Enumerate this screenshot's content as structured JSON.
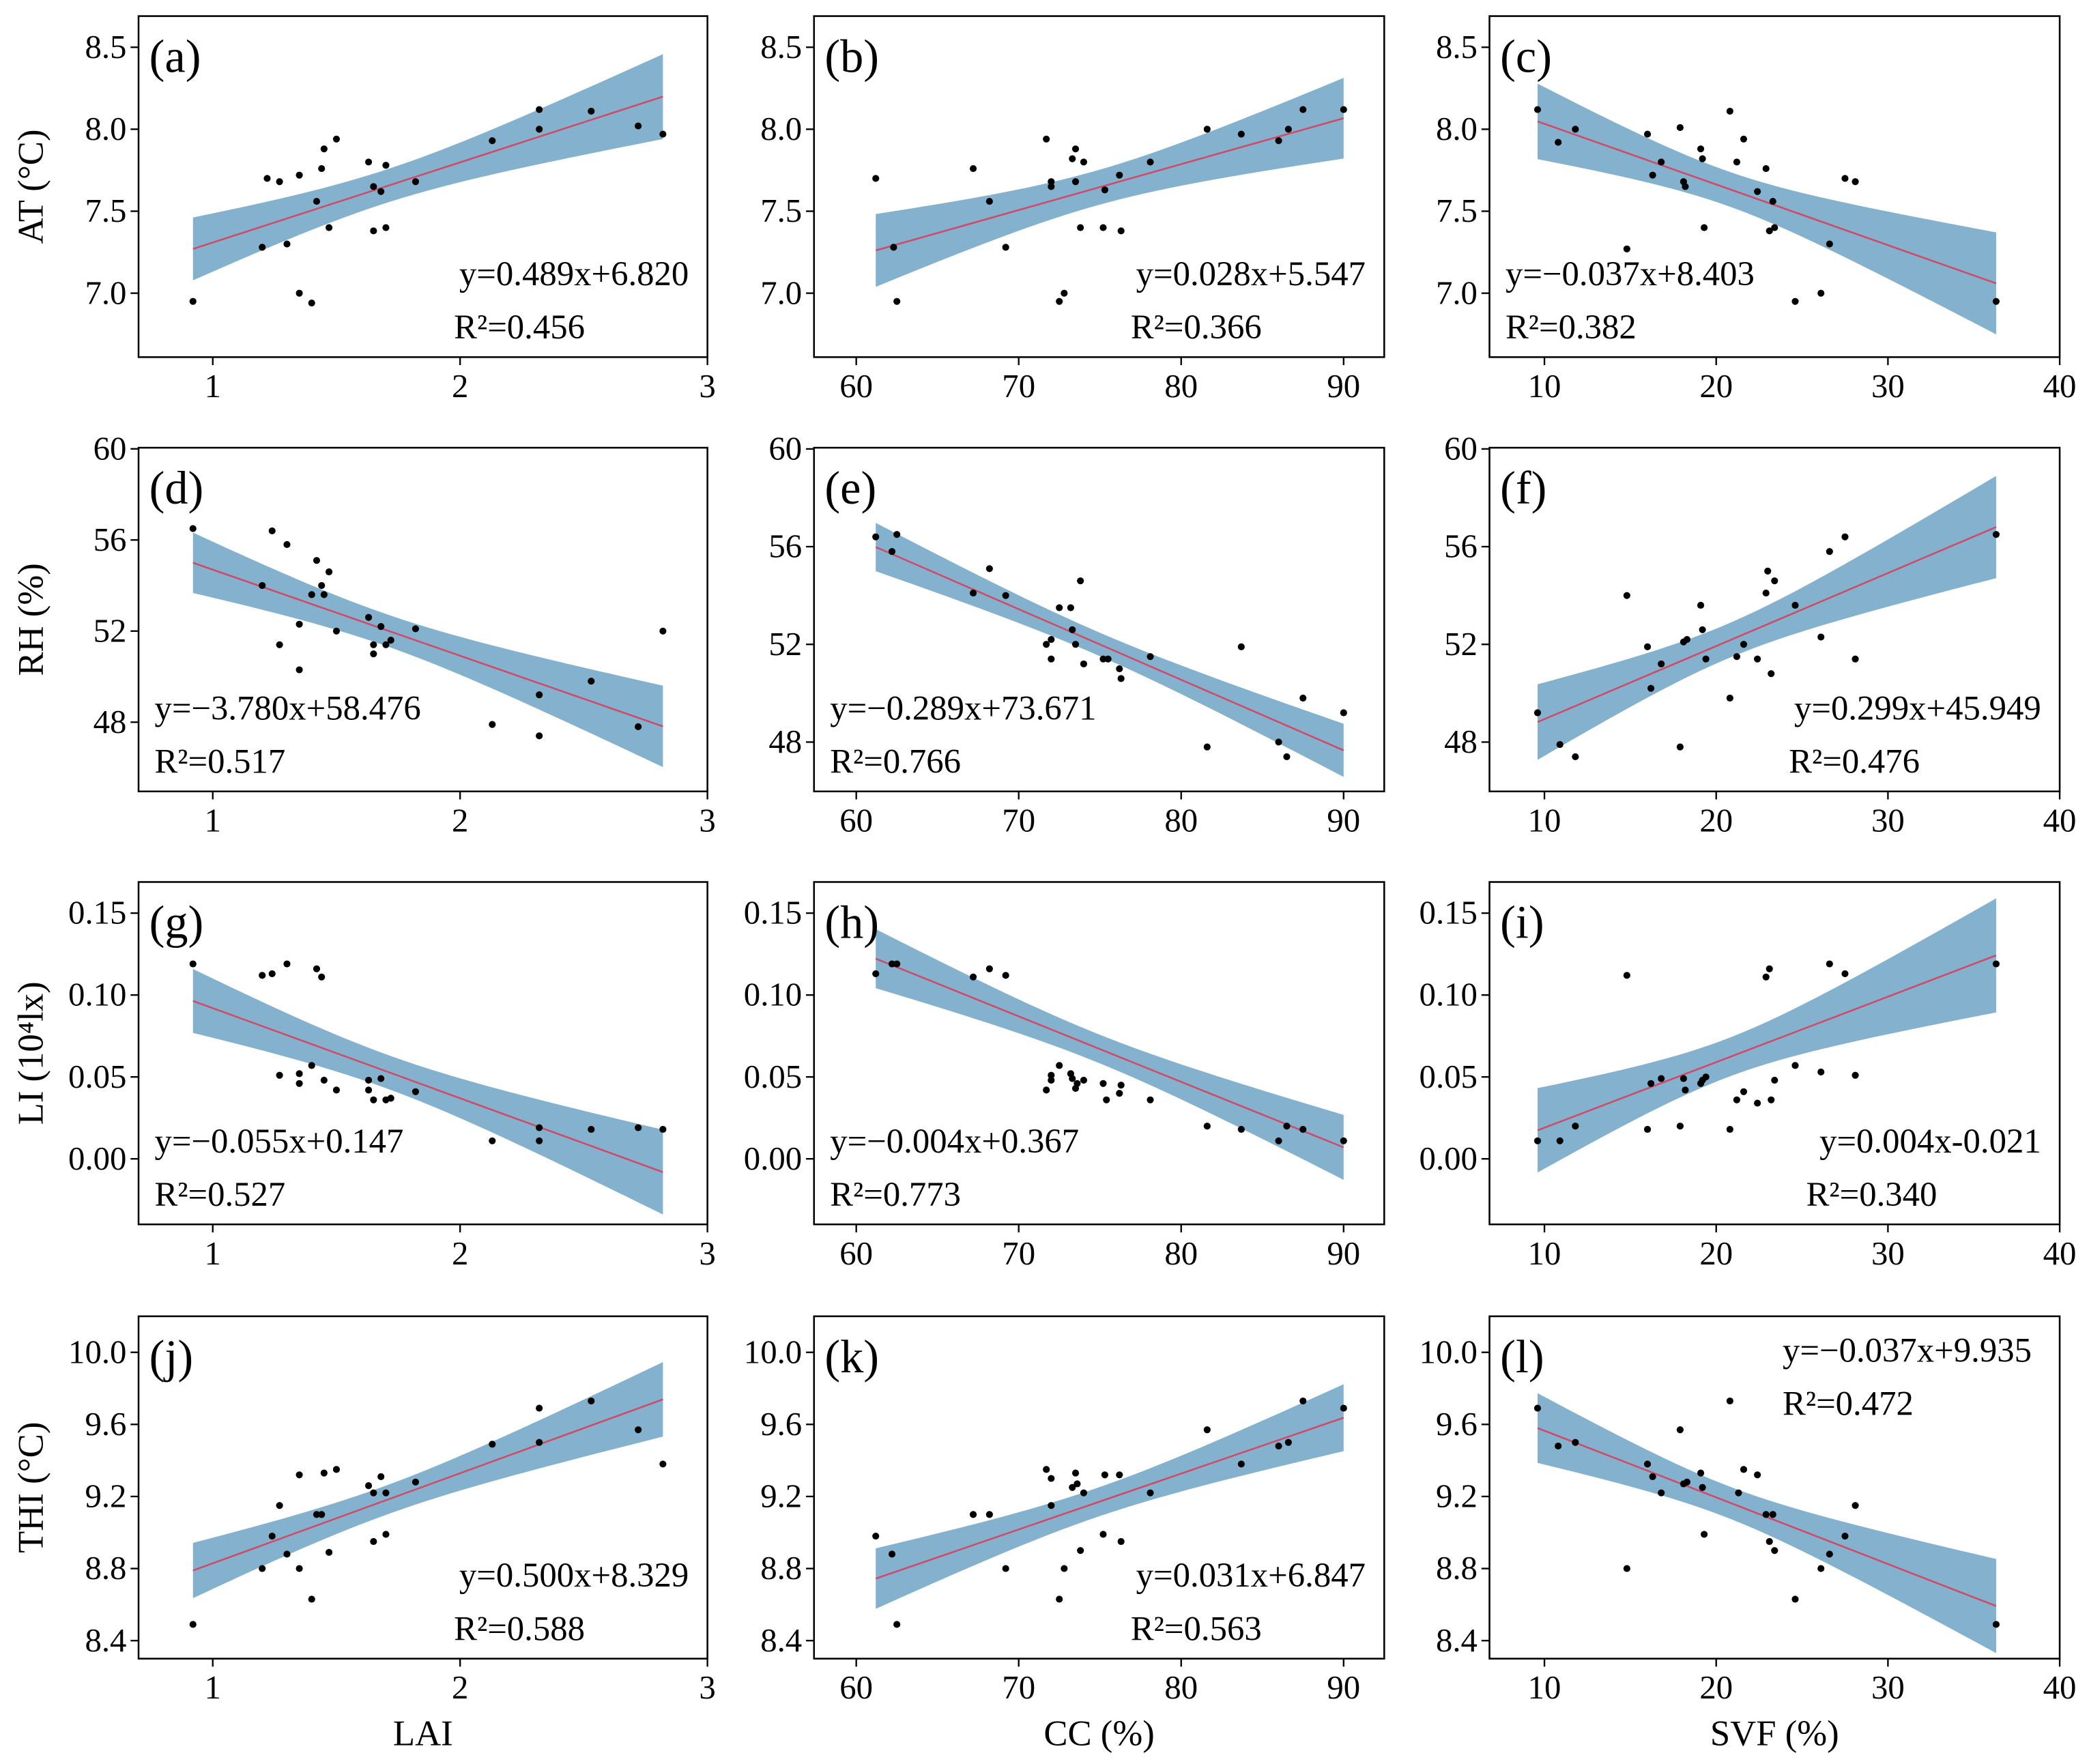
{
  "colors": {
    "band": "#6fa3c4",
    "line": "#d04a68",
    "point": "#000000"
  },
  "chart_data": [
    {
      "id": "a",
      "type": "scatter",
      "label": "(a)",
      "xlabel": "",
      "ylabel": "AT (°C)",
      "xlim": [
        0.7,
        3.0
      ],
      "ylim": [
        6.61,
        8.69
      ],
      "xticks": [
        1,
        2,
        3
      ],
      "yticks": [
        7.0,
        7.5,
        8.0,
        8.5
      ],
      "ytick_fmt": 1,
      "slope": 0.489,
      "intercept": 6.82,
      "equation": "y=0.489x+6.820",
      "r2": "R²=0.456",
      "eq_pos": "bottom-right",
      "x": [
        0.92,
        1.2,
        1.22,
        1.27,
        1.3,
        1.35,
        1.35,
        1.4,
        1.42,
        1.44,
        1.45,
        1.47,
        1.5,
        1.63,
        1.65,
        1.65,
        1.68,
        1.7,
        1.7,
        1.82,
        2.13,
        2.32,
        2.32,
        2.53,
        2.72,
        2.82
      ],
      "y": [
        6.95,
        7.28,
        7.7,
        7.68,
        7.3,
        7.0,
        7.72,
        6.94,
        7.56,
        7.76,
        7.88,
        7.4,
        7.94,
        7.8,
        7.38,
        7.65,
        7.62,
        7.4,
        7.78,
        7.68,
        7.93,
        8.12,
        8.0,
        8.11,
        8.02,
        7.97
      ]
    },
    {
      "id": "b",
      "type": "scatter",
      "label": "(b)",
      "xlabel": "",
      "ylabel": "",
      "xlim": [
        57.4,
        92.5
      ],
      "ylim": [
        6.61,
        8.69
      ],
      "xticks": [
        60,
        70,
        80,
        90
      ],
      "yticks": [
        7.0,
        7.5,
        8.0,
        8.5
      ],
      "ytick_fmt": 1,
      "slope": 0.028,
      "intercept": 5.547,
      "equation": "y=0.028x+5.547",
      "r2": "R²=0.366",
      "eq_pos": "bottom-right",
      "x": [
        61.2,
        62.3,
        62.5,
        67.2,
        68.2,
        69.2,
        71.7,
        72,
        72,
        72.5,
        72.8,
        73.3,
        73.5,
        73.5,
        73.8,
        74,
        75.2,
        75.3,
        76.2,
        76.3,
        78.1,
        81.6,
        83.7,
        86,
        86.6,
        87.5,
        90
      ],
      "y": [
        7.7,
        7.28,
        6.95,
        7.76,
        7.56,
        7.28,
        7.94,
        7.65,
        7.68,
        6.95,
        7.0,
        7.82,
        7.88,
        7.68,
        7.4,
        7.8,
        7.4,
        7.63,
        7.72,
        7.38,
        7.8,
        8.0,
        7.97,
        7.93,
        8.0,
        8.12,
        8.12
      ]
    },
    {
      "id": "c",
      "type": "scatter",
      "label": "(c)",
      "xlabel": "",
      "ylabel": "",
      "xlim": [
        6.8,
        40
      ],
      "ylim": [
        6.61,
        8.69
      ],
      "xticks": [
        10,
        20,
        30,
        40
      ],
      "yticks": [
        7.0,
        7.5,
        8.0,
        8.5
      ],
      "ytick_fmt": 1,
      "slope": -0.037,
      "intercept": 8.403,
      "equation": "y=−0.037x+8.403",
      "r2": "R²=0.382",
      "eq_pos": "bottom-left",
      "x": [
        9.6,
        10.8,
        11.8,
        14.8,
        16,
        16.3,
        16.8,
        17.9,
        18.1,
        18.2,
        19.1,
        19.2,
        19.3,
        20.8,
        21.2,
        21.6,
        22.4,
        22.9,
        23.1,
        23.4,
        23.3,
        24.6,
        26.1,
        26.6,
        27.5,
        28.1,
        36.3
      ],
      "y": [
        8.12,
        7.92,
        8.0,
        7.27,
        7.97,
        7.72,
        7.8,
        8.01,
        7.68,
        7.65,
        7.88,
        7.82,
        7.4,
        8.11,
        7.8,
        7.94,
        7.62,
        7.76,
        7.38,
        7.4,
        7.56,
        6.95,
        7.0,
        7.3,
        7.7,
        7.68,
        6.95
      ]
    },
    {
      "id": "d",
      "type": "scatter",
      "label": "(d)",
      "xlabel": "",
      "ylabel": "RH (%)",
      "xlim": [
        0.7,
        3.0
      ],
      "ylim": [
        44.96,
        60.05
      ],
      "xticks": [
        1,
        2,
        3
      ],
      "yticks": [
        48,
        52,
        56,
        60
      ],
      "ytick_fmt": 0,
      "slope": -3.78,
      "intercept": 58.476,
      "equation": "y=−3.780x+58.476",
      "r2": "R²=0.517",
      "eq_pos": "bottom-left",
      "x": [
        0.92,
        1.2,
        1.24,
        1.27,
        1.3,
        1.35,
        1.35,
        1.4,
        1.42,
        1.44,
        1.45,
        1.47,
        1.5,
        1.63,
        1.65,
        1.65,
        1.68,
        1.7,
        1.72,
        1.82,
        2.13,
        2.32,
        2.32,
        2.53,
        2.72,
        2.82
      ],
      "y": [
        56.5,
        54,
        56.4,
        51.4,
        55.8,
        52.3,
        50.3,
        53.6,
        55.1,
        54,
        53.6,
        54.6,
        52,
        52.6,
        51,
        51.4,
        52.2,
        51.4,
        51.6,
        52.1,
        47.9,
        49.2,
        47.4,
        49.8,
        47.8,
        52
      ]
    },
    {
      "id": "e",
      "type": "scatter",
      "label": "(e)",
      "xlabel": "",
      "ylabel": "",
      "xlim": [
        57.4,
        92.5
      ],
      "ylim": [
        45.98,
        60.05
      ],
      "xticks": [
        60,
        70,
        80,
        90
      ],
      "yticks": [
        48,
        52,
        56,
        60
      ],
      "ytick_fmt": 0,
      "slope": -0.289,
      "intercept": 73.671,
      "equation": "y=−0.289x+73.671",
      "r2": "R²=0.766",
      "eq_pos": "bottom-left",
      "x": [
        61.2,
        62.2,
        62.5,
        67.2,
        68.2,
        69.2,
        71.7,
        72,
        72,
        72.5,
        73.2,
        73.3,
        73.5,
        73.8,
        74,
        75.2,
        75.5,
        76.2,
        76.3,
        78.1,
        81.6,
        83.7,
        86,
        86.5,
        87.5,
        90
      ],
      "y": [
        56.4,
        55.8,
        56.5,
        54.1,
        55.1,
        54,
        52,
        52.2,
        51.4,
        53.5,
        53.5,
        52.6,
        52,
        54.6,
        51.2,
        51.4,
        51.4,
        51,
        50.6,
        51.5,
        47.8,
        51.9,
        48,
        47.4,
        49.8,
        49.2
      ]
    },
    {
      "id": "f",
      "type": "scatter",
      "label": "(f)",
      "xlabel": "",
      "ylabel": "",
      "xlim": [
        6.8,
        40
      ],
      "ylim": [
        45.98,
        60.05
      ],
      "xticks": [
        10,
        20,
        30,
        40
      ],
      "yticks": [
        48,
        52,
        56,
        60
      ],
      "ytick_fmt": 0,
      "slope": 0.299,
      "intercept": 45.949,
      "equation": "y=0.299x+45.949",
      "r2": "R²=0.476",
      "eq_pos": "bottom-right",
      "x": [
        9.6,
        10.9,
        11.8,
        14.8,
        16,
        16.2,
        16.8,
        17.9,
        18.1,
        18.3,
        19.1,
        19.2,
        19.4,
        20.8,
        21.2,
        21.6,
        22.4,
        22.9,
        23,
        23.2,
        23.4,
        24.6,
        26.1,
        26.6,
        27.5,
        28.1,
        36.3
      ],
      "y": [
        49.2,
        47.9,
        47.4,
        54,
        51.9,
        50.2,
        51.2,
        47.8,
        52.1,
        52.2,
        53.6,
        52.6,
        51.4,
        49.8,
        51.5,
        52,
        51.4,
        54.1,
        55,
        50.8,
        54.6,
        53.6,
        52.3,
        55.8,
        56.4,
        51.4,
        56.5
      ]
    },
    {
      "id": "g",
      "type": "scatter",
      "label": "(g)",
      "xlabel": "",
      "ylabel": "LI (10⁴lx)",
      "xlim": [
        0.7,
        3.0
      ],
      "ylim": [
        -0.04,
        0.169
      ],
      "xticks": [
        1,
        2,
        3
      ],
      "yticks": [
        0.0,
        0.05,
        0.1,
        0.15
      ],
      "ytick_fmt": 2,
      "slope": -0.055,
      "intercept": 0.147,
      "equation": "y=−0.055x+0.147",
      "r2": "R²=0.527",
      "eq_pos": "bottom-left",
      "x": [
        0.92,
        1.2,
        1.24,
        1.27,
        1.3,
        1.35,
        1.35,
        1.4,
        1.42,
        1.44,
        1.45,
        1.5,
        1.63,
        1.63,
        1.65,
        1.68,
        1.7,
        1.72,
        1.82,
        2.13,
        2.32,
        2.32,
        2.53,
        2.72,
        2.82
      ],
      "y": [
        0.119,
        0.112,
        0.113,
        0.051,
        0.119,
        0.046,
        0.052,
        0.057,
        0.116,
        0.111,
        0.048,
        0.042,
        0.048,
        0.042,
        0.036,
        0.049,
        0.036,
        0.037,
        0.041,
        0.011,
        0.019,
        0.011,
        0.018,
        0.019,
        0.018
      ]
    },
    {
      "id": "h",
      "type": "scatter",
      "label": "(h)",
      "xlabel": "",
      "ylabel": "",
      "xlim": [
        57.4,
        92.5
      ],
      "ylim": [
        -0.04,
        0.169
      ],
      "xticks": [
        60,
        70,
        80,
        90
      ],
      "yticks": [
        0.0,
        0.05,
        0.1,
        0.15
      ],
      "ytick_fmt": 2,
      "slope": -0.004,
      "intercept": 0.367,
      "equation": "y=−0.004x+0.367",
      "r2": "R²=0.773",
      "eq_pos": "bottom-left",
      "x": [
        61.2,
        62.2,
        62.5,
        67.2,
        68.2,
        69.2,
        71.7,
        72,
        72,
        72.5,
        73.2,
        73.3,
        73.5,
        73.6,
        74,
        75.2,
        75.4,
        76.2,
        76.3,
        78.1,
        81.6,
        83.7,
        86,
        86.5,
        87.5,
        90
      ],
      "y": [
        0.113,
        0.119,
        0.119,
        0.111,
        0.116,
        0.112,
        0.042,
        0.051,
        0.048,
        0.057,
        0.052,
        0.049,
        0.043,
        0.046,
        0.048,
        0.046,
        0.036,
        0.04,
        0.045,
        0.036,
        0.02,
        0.018,
        0.011,
        0.02,
        0.018,
        0.011
      ]
    },
    {
      "id": "i",
      "type": "scatter",
      "label": "(i)",
      "xlabel": "",
      "ylabel": "",
      "xlim": [
        6.8,
        40
      ],
      "ylim": [
        -0.04,
        0.169
      ],
      "xticks": [
        10,
        20,
        30,
        40
      ],
      "yticks": [
        0.0,
        0.05,
        0.1,
        0.15
      ],
      "ytick_fmt": 2,
      "slope": 0.004,
      "intercept": -0.021,
      "equation": "y=0.004x-0.021",
      "r2": "R²=0.340",
      "eq_pos": "bottom-right",
      "x": [
        9.6,
        10.9,
        11.8,
        14.8,
        16,
        16.2,
        16.8,
        17.9,
        18.1,
        18.2,
        19.1,
        19.2,
        19.4,
        20.8,
        21.2,
        21.6,
        22.4,
        22.9,
        23.1,
        23.2,
        23.4,
        24.6,
        26.1,
        26.6,
        27.5,
        28.1,
        36.3
      ],
      "y": [
        0.011,
        0.011,
        0.02,
        0.112,
        0.018,
        0.046,
        0.049,
        0.02,
        0.049,
        0.042,
        0.046,
        0.048,
        0.05,
        0.018,
        0.036,
        0.041,
        0.034,
        0.111,
        0.116,
        0.036,
        0.048,
        0.057,
        0.053,
        0.119,
        0.113,
        0.051,
        0.119
      ]
    },
    {
      "id": "j",
      "type": "scatter",
      "label": "(j)",
      "xlabel": "LAI",
      "ylabel": "THI (°C)",
      "xlim": [
        0.7,
        3.0
      ],
      "ylim": [
        8.3,
        10.2
      ],
      "xticks": [
        1,
        2,
        3
      ],
      "yticks": [
        8.4,
        8.8,
        9.2,
        9.6,
        10.0
      ],
      "ytick_fmt": 1,
      "slope": 0.5,
      "intercept": 8.329,
      "equation": "y=0.500x+8.329",
      "r2": "R²=0.588",
      "eq_pos": "bottom-right",
      "x": [
        0.92,
        1.2,
        1.24,
        1.27,
        1.3,
        1.35,
        1.35,
        1.4,
        1.42,
        1.44,
        1.45,
        1.47,
        1.5,
        1.63,
        1.65,
        1.65,
        1.68,
        1.7,
        1.7,
        1.82,
        2.13,
        2.32,
        2.32,
        2.53,
        2.72,
        2.82
      ],
      "y": [
        8.49,
        8.8,
        8.98,
        9.15,
        8.88,
        9.32,
        8.8,
        8.63,
        9.1,
        9.1,
        9.33,
        8.89,
        9.35,
        9.26,
        8.95,
        9.22,
        9.31,
        8.99,
        9.22,
        9.28,
        9.49,
        9.69,
        9.5,
        9.73,
        9.57,
        9.38
      ]
    },
    {
      "id": "k",
      "type": "scatter",
      "label": "(k)",
      "xlabel": "CC (%)",
      "ylabel": "",
      "xlim": [
        57.4,
        92.5
      ],
      "ylim": [
        8.3,
        10.2
      ],
      "xticks": [
        60,
        70,
        80,
        90
      ],
      "yticks": [
        8.4,
        8.8,
        9.2,
        9.6,
        10.0
      ],
      "ytick_fmt": 1,
      "slope": 0.031,
      "intercept": 6.847,
      "equation": "y=0.031x+6.847",
      "r2": "R²=0.563",
      "eq_pos": "bottom-right",
      "x": [
        61.2,
        62.2,
        62.5,
        67.2,
        68.2,
        69.2,
        71.7,
        72,
        72,
        72.5,
        72.8,
        73.3,
        73.5,
        73.6,
        73.8,
        74,
        75.2,
        75.3,
        76.2,
        76.3,
        78.1,
        81.6,
        83.7,
        86,
        86.6,
        87.5,
        90
      ],
      "y": [
        8.98,
        8.88,
        8.49,
        9.1,
        9.1,
        8.8,
        9.35,
        9.3,
        9.15,
        8.63,
        8.8,
        9.25,
        9.33,
        9.27,
        8.9,
        9.22,
        8.99,
        9.32,
        9.32,
        8.95,
        9.22,
        9.57,
        9.38,
        9.48,
        9.5,
        9.73,
        9.69
      ]
    },
    {
      "id": "l",
      "type": "scatter",
      "label": "(l)",
      "xlabel": "SVF (%)",
      "ylabel": "",
      "xlim": [
        6.8,
        40
      ],
      "ylim": [
        8.3,
        10.2
      ],
      "xticks": [
        10,
        20,
        30,
        40
      ],
      "yticks": [
        8.4,
        8.8,
        9.2,
        9.6,
        10.0
      ],
      "ytick_fmt": 1,
      "slope": -0.037,
      "intercept": 9.935,
      "equation": "y=−0.037x+9.935",
      "r2": "R²=0.472",
      "eq_pos": "top-right",
      "x": [
        9.6,
        10.8,
        11.8,
        14.8,
        16,
        16.3,
        16.8,
        17.9,
        18.1,
        18.3,
        19.1,
        19.2,
        19.3,
        20.8,
        21.3,
        21.6,
        22.4,
        22.9,
        23.1,
        23.3,
        23.4,
        24.6,
        26.1,
        26.6,
        27.5,
        28.1,
        36.3
      ],
      "y": [
        9.69,
        9.48,
        9.5,
        8.8,
        9.38,
        9.31,
        9.22,
        9.57,
        9.27,
        9.28,
        9.33,
        9.25,
        8.99,
        9.73,
        9.22,
        9.35,
        9.32,
        9.1,
        8.95,
        9.1,
        8.9,
        8.63,
        8.8,
        8.88,
        8.98,
        9.15,
        8.49
      ]
    }
  ]
}
